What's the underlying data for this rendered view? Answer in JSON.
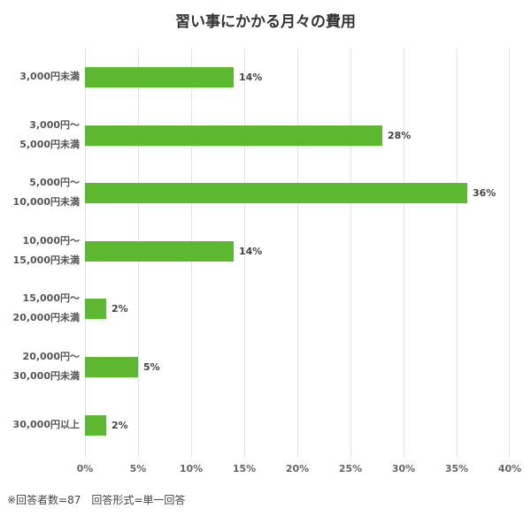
{
  "chart_data": {
    "type": "bar",
    "orientation": "horizontal",
    "title": "習い事にかかる月々の費用",
    "categories": [
      "3,000円未満",
      "3,000円〜5,000円未満",
      "5,000円〜10,000円未満",
      "10,000円〜15,000円未満",
      "15,000円〜20,000円未満",
      "20,000円〜30,000円未満",
      "30,000円以上"
    ],
    "category_lines": [
      [
        "3,000円未満"
      ],
      [
        "3,000円〜",
        "5,000円未満"
      ],
      [
        "5,000円〜",
        "10,000円未満"
      ],
      [
        "10,000円〜",
        "15,000円未満"
      ],
      [
        "15,000円〜",
        "20,000円未満"
      ],
      [
        "20,000円〜",
        "30,000円未満"
      ],
      [
        "30,000円以上"
      ]
    ],
    "values": [
      14,
      28,
      36,
      14,
      2,
      5,
      2
    ],
    "value_labels": [
      "14%",
      "28%",
      "36%",
      "14%",
      "2%",
      "5%",
      "2%"
    ],
    "xlabel": "",
    "ylabel": "",
    "xlim": [
      0,
      40
    ],
    "x_ticks": [
      "0%",
      "5%",
      "10%",
      "15%",
      "20%",
      "25%",
      "30%",
      "35%",
      "40%"
    ],
    "grid": true,
    "legend": null,
    "bar_color": "#5cb82f",
    "footnote": "※回答者数=87　回答形式=単一回答"
  }
}
